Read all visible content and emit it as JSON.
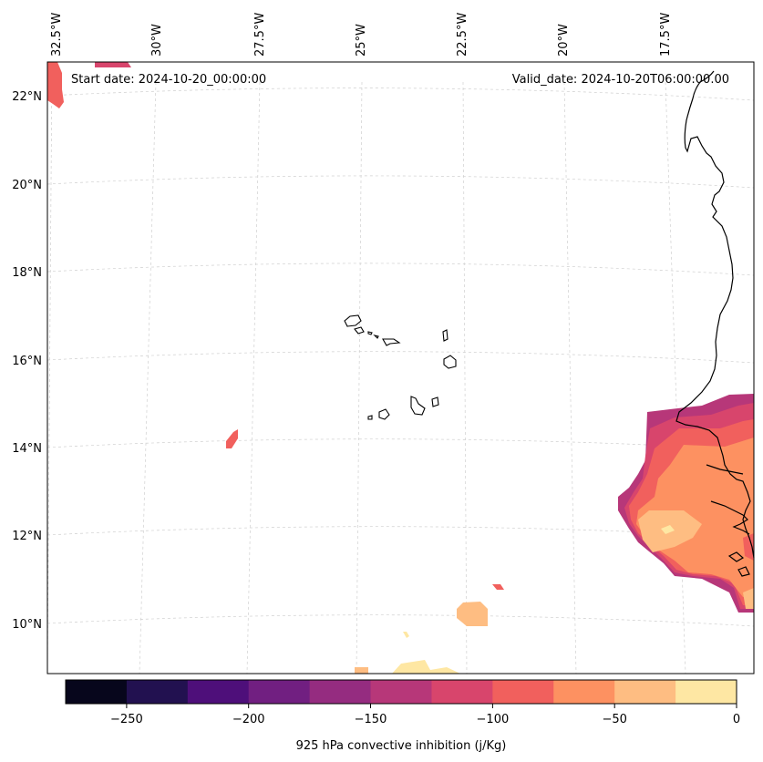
{
  "map": {
    "start_date": "Start date: 2024-10-20_00:00:00",
    "valid_date": "Valid_date: 2024-10-20T06:00:00.00",
    "lon_ticks": [
      "32.5°W",
      "30°W",
      "27.5°W",
      "25°W",
      "22.5°W",
      "20°W",
      "17.5°W"
    ],
    "lat_ticks": [
      "22°N",
      "20°N",
      "18°N",
      "16°N",
      "14°N",
      "12°N",
      "10°N"
    ]
  },
  "colorbar": {
    "label": "925 hPa convective inhibition (j/Kg)",
    "tick_labels": [
      "−250",
      "−200",
      "−150",
      "−100",
      "−50",
      "0"
    ],
    "bins": [
      -275,
      -250,
      -225,
      -200,
      -175,
      -150,
      -125,
      -100,
      -75,
      -50,
      -25,
      0
    ],
    "colors": [
      "#07061c",
      "#221150",
      "#4e0f7a",
      "#711f81",
      "#952c80",
      "#b73779",
      "#d8456c",
      "#f1605d",
      "#fd9161",
      "#febd82",
      "#fee7a3"
    ]
  }
}
